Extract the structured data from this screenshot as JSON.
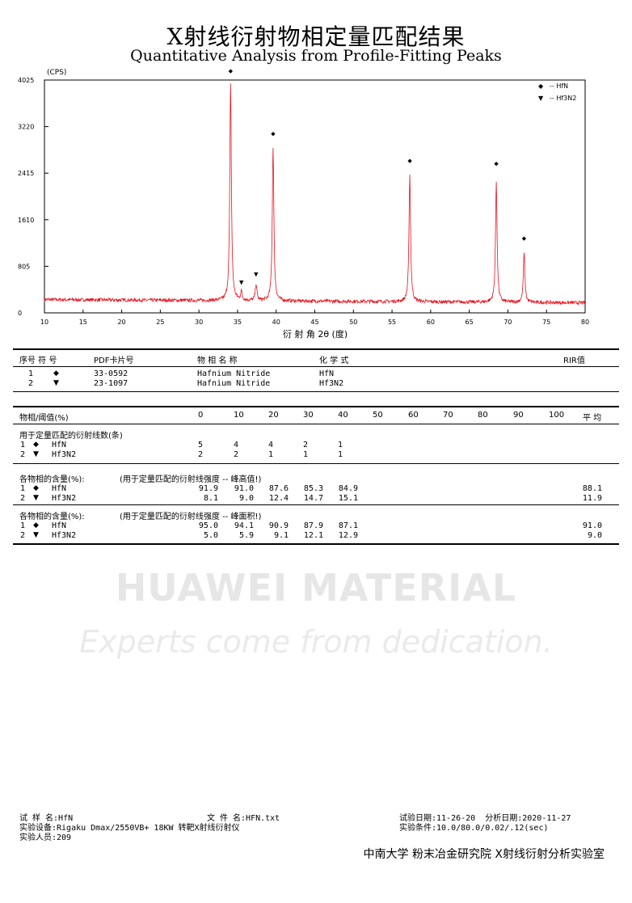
{
  "header": {
    "title_cn": "X射线衍射物相定量匹配结果",
    "title_en": "Quantitative Analysis from Profile-Fitting Peaks"
  },
  "chart_data": {
    "type": "line",
    "unit_label": "(CPS)",
    "xlabel": "衍 射 角 2θ (度)",
    "xlim": [
      10,
      80
    ],
    "ylim": [
      0,
      4025
    ],
    "x_ticks": [
      "10",
      "15",
      "20",
      "25",
      "30",
      "35",
      "40",
      "45",
      "50",
      "55",
      "60",
      "65",
      "70",
      "75",
      "80"
    ],
    "y_ticks": [
      "0",
      "805",
      "1610",
      "2415",
      "3220",
      "4025"
    ],
    "baseline": 230,
    "line_color": "#e8101b",
    "legend": [
      {
        "marker": "◆",
        "label": "-- HfN"
      },
      {
        "marker": "▼",
        "label": "-- Hf3N2"
      }
    ],
    "peaks": [
      {
        "x": 34.1,
        "y": 4000,
        "phase": "HfN"
      },
      {
        "x": 39.6,
        "y": 2900,
        "phase": "HfN"
      },
      {
        "x": 57.3,
        "y": 2440,
        "phase": "HfN"
      },
      {
        "x": 68.5,
        "y": 2320,
        "phase": "HfN"
      },
      {
        "x": 72.1,
        "y": 1080,
        "phase": "HfN"
      },
      {
        "x": 35.5,
        "y": 380,
        "phase": "Hf3N2"
      },
      {
        "x": 37.4,
        "y": 520,
        "phase": "Hf3N2"
      }
    ],
    "markers": [
      {
        "x": 34.1,
        "y": 4190,
        "symbol": "◆"
      },
      {
        "x": 39.6,
        "y": 3110,
        "symbol": "◆"
      },
      {
        "x": 57.3,
        "y": 2640,
        "symbol": "◆"
      },
      {
        "x": 68.5,
        "y": 2590,
        "symbol": "◆"
      },
      {
        "x": 72.1,
        "y": 1300,
        "symbol": "◆"
      },
      {
        "x": 35.5,
        "y": 540,
        "symbol": "▼"
      },
      {
        "x": 37.4,
        "y": 680,
        "symbol": "▼"
      }
    ]
  },
  "phase_table": {
    "headers": [
      "序号 符  号",
      "PDF卡片号",
      "物 相 名 称",
      "化  学  式",
      "RIR值"
    ],
    "rows": [
      {
        "no": "1",
        "symbol": "◆",
        "pdf": "33-0592",
        "name": "Hafnium Nitride",
        "formula": "HfN"
      },
      {
        "no": "2",
        "symbol": "▼",
        "pdf": "23-1097",
        "name": "Hafnium Nitride",
        "formula": "Hf3N2"
      }
    ]
  },
  "threshold_table": {
    "label": "物相/阈值(%)",
    "columns": [
      "0",
      "10",
      "20",
      "30",
      "40",
      "50",
      "60",
      "70",
      "80",
      "90",
      "100"
    ],
    "avg_label": "平 均",
    "sections": [
      {
        "title": "用于定量匹配的衍射线数(条)",
        "subtitle": "",
        "rows": [
          {
            "no": "1",
            "symbol": "◆",
            "phase": "HfN",
            "values": [
              "5",
              "4",
              "4",
              "2",
              "1"
            ],
            "avg": ""
          },
          {
            "no": "2",
            "symbol": "▼",
            "phase": "Hf3N2",
            "values": [
              "2",
              "2",
              "1",
              "1",
              "1"
            ],
            "avg": ""
          }
        ]
      },
      {
        "title": "各物相的含量(%):",
        "subtitle": "(用于定量匹配的衍射线强度 -- 峰高值!)",
        "rows": [
          {
            "no": "1",
            "symbol": "◆",
            "phase": "HfN",
            "values": [
              "91.9",
              "91.0",
              "87.6",
              "85.3",
              "84.9"
            ],
            "avg": "88.1"
          },
          {
            "no": "2",
            "symbol": "▼",
            "phase": "Hf3N2",
            "values": [
              "8.1",
              "9.0",
              "12.4",
              "14.7",
              "15.1"
            ],
            "avg": "11.9"
          }
        ]
      },
      {
        "title": "各物相的含量(%):",
        "subtitle": "(用于定量匹配的衍射线强度 -- 峰面积!)",
        "rows": [
          {
            "no": "1",
            "symbol": "◆",
            "phase": "HfN",
            "values": [
              "95.0",
              "94.1",
              "90.9",
              "87.9",
              "87.1"
            ],
            "avg": "91.0"
          },
          {
            "no": "2",
            "symbol": "▼",
            "phase": "Hf3N2",
            "values": [
              "5.0",
              "5.9",
              "9.1",
              "12.1",
              "12.9"
            ],
            "avg": "9.0"
          }
        ]
      }
    ]
  },
  "watermark": {
    "line1": "HUAWEI MATERIAL",
    "line2": "Experts come from dedication."
  },
  "footer": {
    "sample": "试 样 名:HfN",
    "file": "文 件 名:HFN.txt",
    "test_date": "试验日期:11-26-20  分析日期:2020-11-27",
    "equipment": "实验设备:Rigaku Dmax/2550VB+ 18KW 转靶X射线衍射仪",
    "conditions": "实验条件:10.0/80.0/0.02/.12(sec)",
    "staff": "实验人员:209",
    "lab": "中南大学 粉末冶金研究院 X射线衍射分析实验室"
  }
}
